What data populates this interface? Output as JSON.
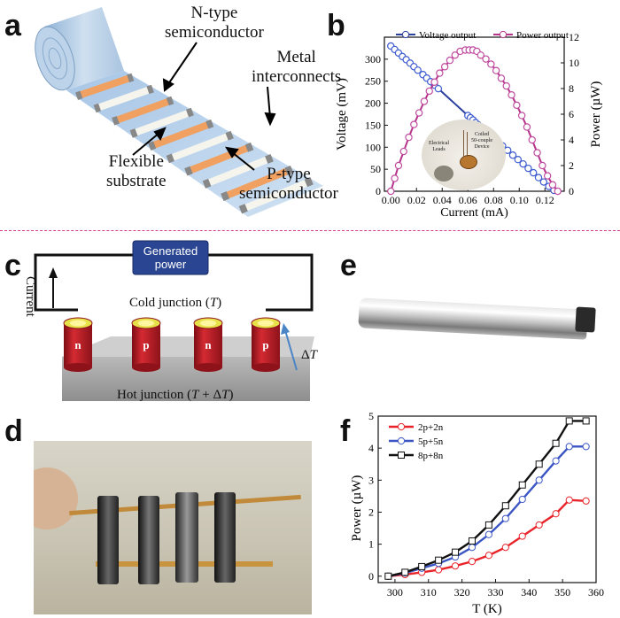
{
  "panel_labels": {
    "a": "a",
    "b": "b",
    "c": "c",
    "d": "d",
    "e": "e",
    "f": "f"
  },
  "panel_a": {
    "n_type": [
      "N-type",
      "semiconductor"
    ],
    "metal": [
      "Metal",
      "interconnects"
    ],
    "flexible": [
      "Flexible",
      "substrate"
    ],
    "p_type": [
      "P-type",
      "semiconductor"
    ]
  },
  "panel_c": {
    "generated_power": [
      "Generated",
      "power"
    ],
    "current": "Current",
    "cold_junction_prefix": "Cold junction (",
    "cold_junction_var": "T",
    "cold_junction_suffix": ")",
    "hot_junction_prefix": "Hot junction (",
    "hot_junction_var": "T",
    "hot_junction_mid": " + Δ",
    "hot_junction_var2": "T",
    "hot_junction_suffix": ")",
    "delta_t": "Δ",
    "delta_t_var": "T",
    "legs": [
      "n",
      "p",
      "n",
      "p"
    ]
  },
  "panel_b_inset": {
    "electrical_leads": [
      "Electrical",
      "Leads"
    ],
    "coiled_device": [
      "Coiled",
      "50-couple",
      "Device"
    ]
  },
  "colors": {
    "voltage": "#2b3f9e",
    "power": "#b5338a",
    "red": "#e8242a",
    "blue": "#3b56c4",
    "black": "#111111",
    "divider": "#d23a8c"
  },
  "chart_data": [
    {
      "type": "scatter",
      "panel": "b",
      "xlabel": "Current (mA)",
      "ylabel": "Voltage (mV)",
      "y2label": "Power (µW)",
      "xlim": [
        -0.005,
        0.135
      ],
      "ylim": [
        0,
        350
      ],
      "y2lim": [
        0,
        12
      ],
      "xticks": [
        "0.00",
        "0.02",
        "0.04",
        "0.06",
        "0.08",
        "0.10",
        "0.12"
      ],
      "yticks": [
        "0",
        "50",
        "100",
        "150",
        "200",
        "250",
        "300"
      ],
      "y2ticks": [
        "0",
        "2",
        "4",
        "6",
        "8",
        "10",
        "12"
      ],
      "legend_position": "top",
      "series": [
        {
          "name": "Voltage output",
          "axis": "left",
          "x": [
            0.0,
            0.003,
            0.006,
            0.009,
            0.012,
            0.015,
            0.018,
            0.021,
            0.025,
            0.028,
            0.031,
            0.034,
            0.037,
            0.06,
            0.062,
            0.064,
            0.066,
            0.068,
            0.07,
            0.072,
            0.075,
            0.079,
            0.083,
            0.087,
            0.091,
            0.095,
            0.099,
            0.103,
            0.107,
            0.111,
            0.115,
            0.119,
            0.123,
            0.127
          ],
          "y": [
            330,
            322,
            314,
            306,
            299,
            291,
            283,
            275,
            265,
            257,
            249,
            241,
            233,
            172,
            167,
            162,
            156,
            151,
            146,
            141,
            133,
            123,
            113,
            103,
            93,
            82,
            72,
            62,
            52,
            42,
            31,
            21,
            11,
            2
          ]
        },
        {
          "name": "Power output",
          "axis": "right",
          "x": [
            0.0,
            0.003,
            0.006,
            0.01,
            0.014,
            0.018,
            0.022,
            0.026,
            0.03,
            0.034,
            0.038,
            0.042,
            0.046,
            0.05,
            0.054,
            0.058,
            0.061,
            0.064,
            0.067,
            0.07,
            0.074,
            0.078,
            0.082,
            0.086,
            0.09,
            0.094,
            0.098,
            0.102,
            0.106,
            0.11,
            0.114,
            0.118,
            0.122,
            0.126,
            0.13
          ],
          "y": [
            0.0,
            1.0,
            2.0,
            3.1,
            4.2,
            5.2,
            6.1,
            7.0,
            7.8,
            8.5,
            9.2,
            9.7,
            10.2,
            10.6,
            10.9,
            11.0,
            11.0,
            11.0,
            10.9,
            10.6,
            10.3,
            9.9,
            9.4,
            8.8,
            8.2,
            7.5,
            6.7,
            5.9,
            5.0,
            4.0,
            3.0,
            2.0,
            1.2,
            0.5,
            0.0
          ]
        }
      ]
    },
    {
      "type": "line",
      "panel": "f",
      "xlabel": "T (K)",
      "ylabel": "Power (µW)",
      "xlim": [
        295,
        360
      ],
      "ylim": [
        -0.2,
        5
      ],
      "xticks": [
        "300",
        "310",
        "320",
        "330",
        "340",
        "350",
        "360"
      ],
      "yticks": [
        "0",
        "1",
        "2",
        "3",
        "4",
        "5"
      ],
      "legend_position": "top-left",
      "x": [
        298,
        303,
        308,
        313,
        318,
        323,
        328,
        333,
        338,
        343,
        348,
        352,
        357
      ],
      "series": [
        {
          "name": "2p+2n",
          "marker": "circle",
          "values": [
            0.0,
            0.05,
            0.12,
            0.2,
            0.32,
            0.46,
            0.65,
            0.9,
            1.25,
            1.6,
            1.95,
            2.38,
            2.35
          ]
        },
        {
          "name": "5p+5n",
          "marker": "circle",
          "values": [
            0.0,
            0.1,
            0.25,
            0.4,
            0.6,
            0.9,
            1.3,
            1.8,
            2.4,
            3.0,
            3.6,
            4.05,
            4.05
          ]
        },
        {
          "name": "8p+8n",
          "marker": "square",
          "values": [
            0.0,
            0.12,
            0.3,
            0.5,
            0.75,
            1.1,
            1.6,
            2.2,
            2.85,
            3.5,
            4.15,
            4.85,
            4.85
          ]
        }
      ]
    }
  ]
}
